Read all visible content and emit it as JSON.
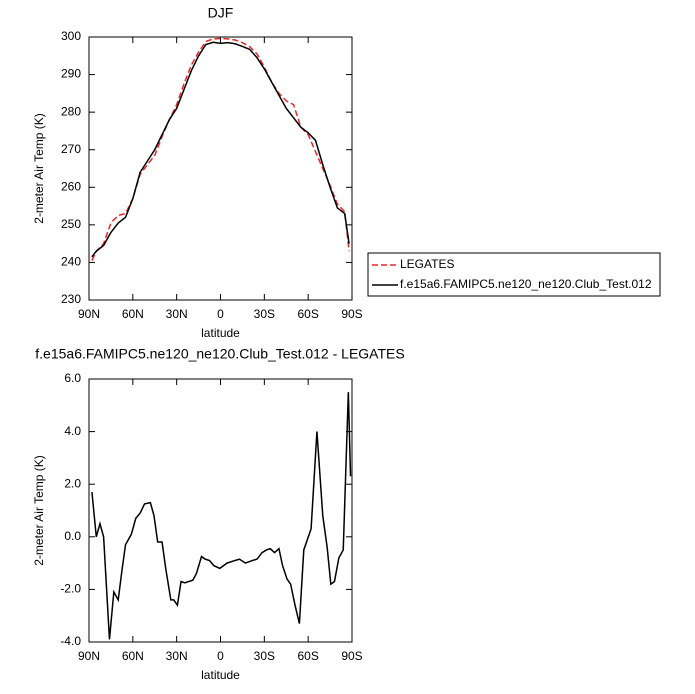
{
  "chart_data": [
    {
      "type": "line",
      "title": "DJF",
      "x_label": "latitude",
      "y_label": "2-meter Air Temp (K)",
      "x": [
        88,
        85,
        80,
        75,
        70,
        65,
        60,
        55,
        50,
        45,
        40,
        35,
        30,
        25,
        20,
        15,
        10,
        5,
        0,
        -5,
        -10,
        -15,
        -20,
        -25,
        -30,
        -35,
        -40,
        -45,
        -50,
        -55,
        -60,
        -65,
        -70,
        -75,
        -80,
        -85,
        -88
      ],
      "series": [
        {
          "name": "LEGATES",
          "color": "#e8262a",
          "dashed": true,
          "values": [
            240.5,
            243,
            245,
            250.5,
            252.5,
            253,
            257,
            263.5,
            266,
            268.5,
            273.5,
            278,
            282,
            287.5,
            292.5,
            296,
            298.8,
            299.5,
            299.6,
            299.5,
            299.2,
            298.5,
            297.4,
            295.5,
            292,
            288,
            285,
            283,
            282,
            276,
            274,
            269.5,
            265,
            260.5,
            255.5,
            253.5,
            243
          ]
        },
        {
          "name": "f.e15a6.FAMIPC5.ne120_ne120.Club_Test.012",
          "color": "#000000",
          "dashed": false,
          "values": [
            241.5,
            243,
            244.5,
            248,
            250.5,
            252,
            257,
            264,
            267,
            270,
            274,
            278,
            281,
            286,
            291,
            295,
            298,
            298.6,
            298.3,
            298.5,
            298.2,
            297.5,
            296.7,
            294.5,
            291.5,
            288,
            284.5,
            281,
            278.5,
            276,
            274.5,
            272.5,
            266,
            260,
            254.5,
            253,
            245
          ]
        }
      ],
      "xlim": [
        90,
        -90
      ],
      "xticks": [
        {
          "value": 90,
          "label": "90N"
        },
        {
          "value": 60,
          "label": "60N"
        },
        {
          "value": 30,
          "label": "30N"
        },
        0,
        {
          "value": -30,
          "label": "30S"
        },
        {
          "value": -60,
          "label": "60S"
        },
        {
          "value": -90,
          "label": "90S"
        }
      ],
      "ylim": [
        230,
        300
      ],
      "yticks": [
        230,
        240,
        250,
        260,
        270,
        280,
        290,
        300
      ],
      "legend": "right"
    },
    {
      "type": "line",
      "title": "f.e15a6.FAMIPC5.ne120_ne120.Club_Test.012 - LEGATES",
      "x_label": "latitude",
      "y_label": "2-meter Air Temp (K)",
      "x": [
        88,
        85,
        82.5,
        80,
        76,
        73,
        70,
        67.5,
        65,
        61,
        58,
        55,
        52,
        48,
        45.5,
        43,
        40,
        37.5,
        34,
        32,
        29.5,
        27,
        24.5,
        19,
        16.5,
        13,
        10.5,
        7.5,
        4.5,
        0.5,
        -4.5,
        -10,
        -13,
        -17,
        -22,
        -25,
        -28.5,
        -31.5,
        -34,
        -37,
        -40,
        -42.5,
        -45.5,
        -48,
        -51,
        -54,
        -57,
        -62,
        -66,
        -70,
        -73,
        -75.5,
        -78,
        -81,
        -84,
        -87.5,
        -89
      ],
      "series": [
        {
          "color": "#000000",
          "dashed": false,
          "values": [
            1.7,
            0.0,
            0.5,
            0.0,
            -3.9,
            -2.1,
            -2.4,
            -1.3,
            -0.3,
            0.1,
            0.7,
            0.9,
            1.25,
            1.3,
            0.8,
            -0.2,
            -0.2,
            -1.2,
            -2.4,
            -2.4,
            -2.6,
            -1.7,
            -1.75,
            -1.65,
            -1.4,
            -0.75,
            -0.85,
            -0.9,
            -1.1,
            -1.2,
            -1.0,
            -0.9,
            -0.85,
            -1.0,
            -0.9,
            -0.85,
            -0.6,
            -0.5,
            -0.45,
            -0.6,
            -0.45,
            -1.1,
            -1.6,
            -1.8,
            -2.6,
            -3.3,
            -0.5,
            0.3,
            4.0,
            0.8,
            -0.4,
            -1.8,
            -1.7,
            -0.8,
            -0.5,
            5.5,
            2.3
          ]
        }
      ],
      "xlim": [
        90,
        -90
      ],
      "xticks": [
        {
          "value": 90,
          "label": "90N"
        },
        {
          "value": 60,
          "label": "60N"
        },
        {
          "value": 30,
          "label": "30N"
        },
        0,
        {
          "value": -30,
          "label": "30S"
        },
        {
          "value": -60,
          "label": "60S"
        },
        {
          "value": -90,
          "label": "90S"
        }
      ],
      "ylim": [
        -4,
        6
      ],
      "yticks": [
        {
          "value": -4,
          "label": "-4.0"
        },
        {
          "value": -2,
          "label": "-2.0"
        },
        {
          "value": 0,
          "label": "0.0"
        },
        {
          "value": 2,
          "label": "2.0"
        },
        {
          "value": 4,
          "label": "4.0"
        },
        {
          "value": 6,
          "label": "6.0"
        }
      ]
    }
  ]
}
